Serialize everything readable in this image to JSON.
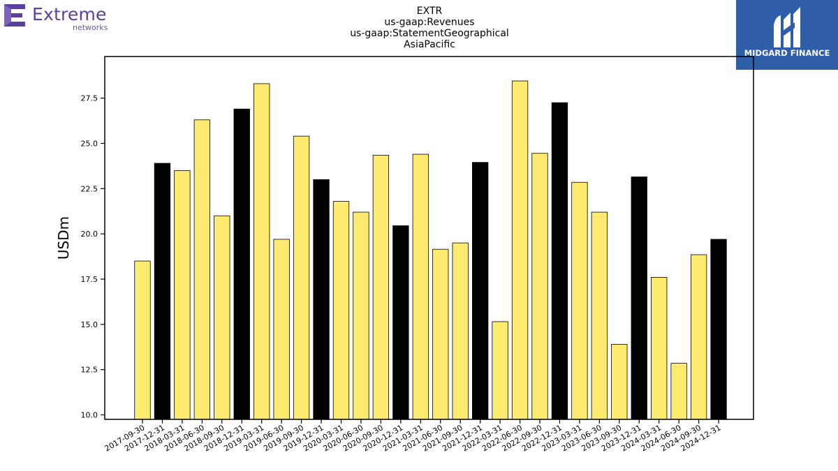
{
  "logos": {
    "left": {
      "name": "Extreme",
      "sub": "networks",
      "color": "#5b3f9e"
    },
    "right": {
      "name": "MIDGARD FINANCE",
      "background": "#2f5ea8"
    }
  },
  "chart_data": {
    "type": "bar",
    "title": [
      "EXTR",
      "us-gaap:Revenues",
      "us-gaap:StatementGeographical",
      "AsiaPacific"
    ],
    "xlabel": "",
    "ylabel": "USDm",
    "ylim": [
      9.75,
      29.8
    ],
    "yticks": [
      "10.0",
      "12.5",
      "15.0",
      "17.5",
      "20.0",
      "22.5",
      "25.0",
      "27.5"
    ],
    "grid": false,
    "legend": "none",
    "colors": {
      "quarter": "#fdea6e",
      "fiscal_year_end": "#000000",
      "edge": "#000000"
    },
    "categories": [
      "2017-09-30",
      "2017-12-31",
      "2018-03-31",
      "2018-06-30",
      "2018-09-30",
      "2018-12-31",
      "2019-03-31",
      "2019-06-30",
      "2019-09-30",
      "2019-12-31",
      "2020-03-31",
      "2020-06-30",
      "2020-09-30",
      "2020-12-31",
      "2021-03-31",
      "2021-06-30",
      "2021-09-30",
      "2021-12-31",
      "2022-03-31",
      "2022-06-30",
      "2022-09-30",
      "2022-12-31",
      "2023-03-31",
      "2023-06-30",
      "2023-09-30",
      "2023-12-31",
      "2024-03-31",
      "2024-06-30",
      "2024-09-30",
      "2024-12-31"
    ],
    "values": [
      18.5,
      23.9,
      23.5,
      26.3,
      21.0,
      26.9,
      28.3,
      19.7,
      25.4,
      23.0,
      21.8,
      21.2,
      24.35,
      20.45,
      24.4,
      19.15,
      19.5,
      23.95,
      15.15,
      28.45,
      24.45,
      27.25,
      22.85,
      21.2,
      13.9,
      23.15,
      17.6,
      12.85,
      18.85,
      19.7
    ],
    "highlight": [
      false,
      true,
      false,
      false,
      false,
      true,
      false,
      false,
      false,
      true,
      false,
      false,
      false,
      true,
      false,
      false,
      false,
      true,
      false,
      false,
      false,
      true,
      false,
      false,
      false,
      true,
      false,
      false,
      false,
      true
    ]
  }
}
